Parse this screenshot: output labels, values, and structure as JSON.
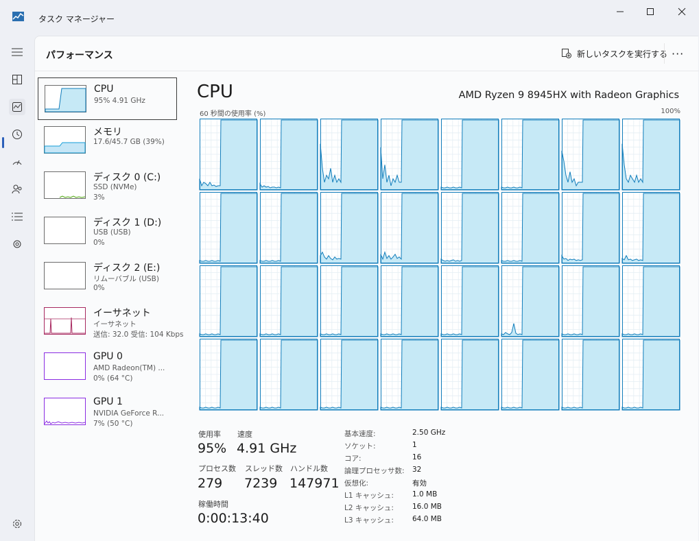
{
  "window": {
    "title": "タスク マネージャー"
  },
  "header": {
    "title": "パフォーマンス",
    "new_task_label": "新しいタスクを実行する",
    "more_label": "···"
  },
  "nav": [
    "menu-icon",
    "processes-icon",
    "performance-icon",
    "app-history-icon",
    "startup-icon",
    "users-icon",
    "details-icon",
    "services-icon",
    "settings-icon"
  ],
  "sidebar": [
    {
      "name": "CPU",
      "sub1": "95%  4.91 GHz",
      "sub2": "",
      "sub3": "",
      "color": "#117dbb",
      "usage": 0.95
    },
    {
      "name": "メモリ",
      "sub1": "17.6/45.7 GB (39%)",
      "sub2": "",
      "sub3": "",
      "color": "#139ed8",
      "usage": 0.39
    },
    {
      "name": "ディスク 0 (C:)",
      "sub1": "SSD (NVMe)",
      "sub2": "3%",
      "sub3": "",
      "color": "#4da60c",
      "usage": 0.03
    },
    {
      "name": "ディスク 1 (D:)",
      "sub1": "USB (USB)",
      "sub2": "0%",
      "sub3": "",
      "color": "#4da60c",
      "usage": 0
    },
    {
      "name": "ディスク 2 (E:)",
      "sub1": "リムーバブル (USB)",
      "sub2": "0%",
      "sub3": "",
      "color": "#4da60c",
      "usage": 0
    },
    {
      "name": "イーサネット",
      "sub1": "イーサネット",
      "sub2": "送信: 32.0 受信: 104 Kbps",
      "sub3": "",
      "color": "#a7285f",
      "usage": 0
    },
    {
      "name": "GPU 0",
      "sub1": "AMD Radeon(TM) ...",
      "sub2": "0%  (64 °C)",
      "sub3": "",
      "color": "#8a2be2",
      "usage": 0
    },
    {
      "name": "GPU 1",
      "sub1": "NVIDIA GeForce R...",
      "sub2": "7%  (50 °C)",
      "sub3": "",
      "color": "#8a2be2",
      "usage": 0.07
    }
  ],
  "cpu": {
    "title": "CPU",
    "model": "AMD Ryzen 9 8945HX with Radeon Graphics",
    "chart_label": "60 秒間の使用率 (%)",
    "chart_max": "100%",
    "core_count": 32,
    "line_color": "#117dbb",
    "fill_color": "#c6e9f6"
  },
  "stats": {
    "usage_label": "使用率",
    "usage": "95%",
    "speed_label": "速度",
    "speed": "4.91 GHz",
    "processes_label": "プロセス数",
    "processes": "279",
    "threads_label": "スレッド数",
    "threads": "7239",
    "handles_label": "ハンドル数",
    "handles": "147971",
    "uptime_label": "稼働時間",
    "uptime": "0:00:13:40"
  },
  "specs": [
    {
      "k": "基本速度:",
      "v": "2.50 GHz"
    },
    {
      "k": "ソケット:",
      "v": "1"
    },
    {
      "k": "コア:",
      "v": "16"
    },
    {
      "k": "論理プロセッサ数:",
      "v": "32"
    },
    {
      "k": "仮想化:",
      "v": "有効"
    },
    {
      "k": "L1 キャッシュ:",
      "v": "1.0 MB"
    },
    {
      "k": "L2 キャッシュ:",
      "v": "16.0 MB"
    },
    {
      "k": "L3 キャッシュ:",
      "v": "64.0 MB"
    }
  ]
}
